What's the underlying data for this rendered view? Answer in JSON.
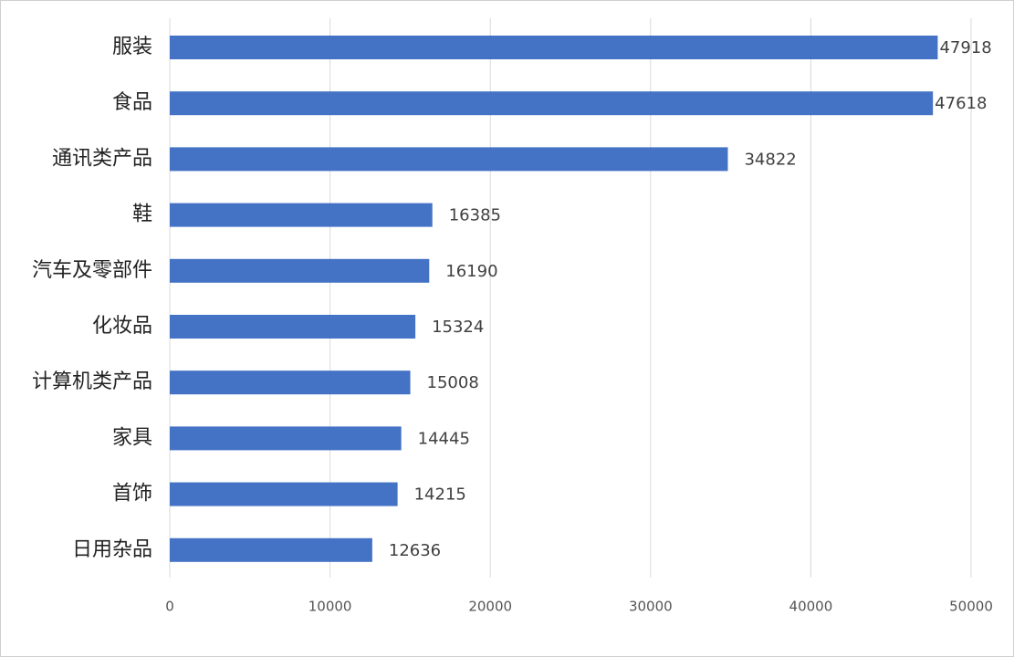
{
  "chart_data": {
    "type": "bar",
    "orientation": "horizontal",
    "categories": [
      "服装",
      "食品",
      "通讯类产品",
      "鞋",
      "汽车及零部件",
      "化妆品",
      "计算机类产品",
      "家具",
      "首饰",
      "日用杂品"
    ],
    "values": [
      47918,
      47618,
      34822,
      16385,
      16190,
      15324,
      15008,
      14445,
      14215,
      12636
    ],
    "color": "#4472c4",
    "xlim": [
      0,
      50000
    ],
    "xticks": [
      0,
      10000,
      20000,
      30000,
      40000,
      50000
    ],
    "grid": true
  }
}
